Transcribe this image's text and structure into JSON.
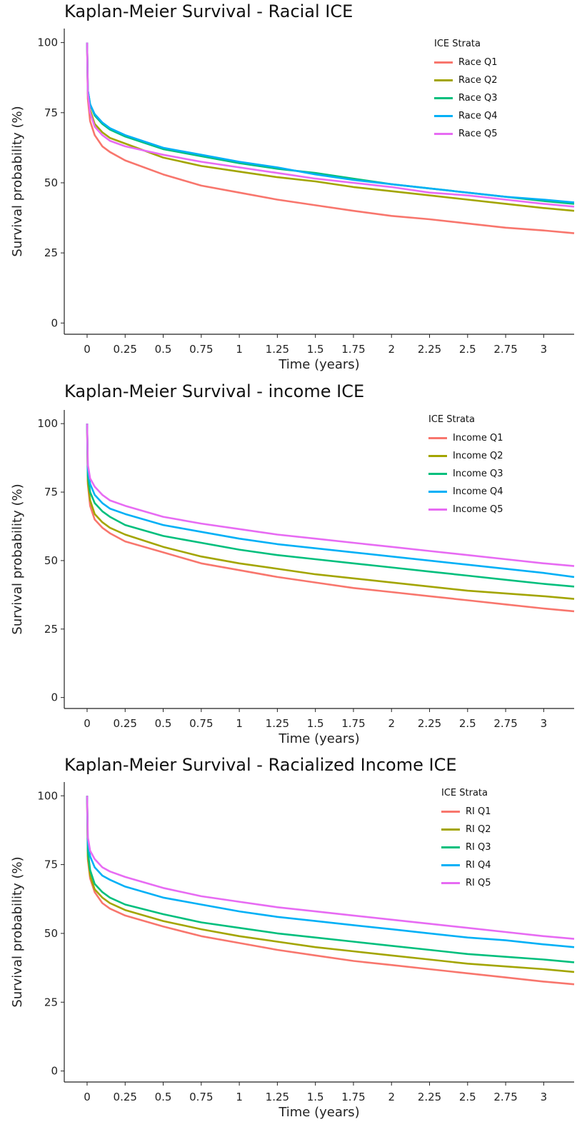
{
  "chart_data": [
    {
      "type": "line",
      "title": "Kaplan-Meier Survival - Racial ICE",
      "xlabel": "Time (years)",
      "ylabel": "Survival probability (%)",
      "xlim": [
        -0.15,
        3.2
      ],
      "ylim": [
        -4,
        105
      ],
      "xticks": [
        "0",
        "0.25",
        "0.5",
        "0.75",
        "1",
        "1.25",
        "1.5",
        "1.75",
        "2",
        "2.25",
        "2.5",
        "2.75",
        "3"
      ],
      "yticks": [
        "0",
        "25",
        "50",
        "75",
        "100"
      ],
      "legend_title": "ICE Strata",
      "legend_position": "top-right",
      "grid": false,
      "x": [
        0,
        0.005,
        0.02,
        0.05,
        0.1,
        0.15,
        0.25,
        0.5,
        0.75,
        1,
        1.25,
        1.5,
        1.75,
        2,
        2.25,
        2.5,
        2.75,
        3,
        3.2
      ],
      "series": [
        {
          "name": "Race Q1",
          "color": "#F8766D",
          "values": [
            100,
            80,
            72,
            67,
            63,
            61,
            58,
            53,
            49,
            46.5,
            44,
            42,
            40,
            38.2,
            37,
            35.5,
            34,
            33,
            32
          ]
        },
        {
          "name": "Race Q2",
          "color": "#A3A500",
          "values": [
            100,
            82,
            76,
            71,
            68,
            66,
            64,
            59,
            56,
            54,
            52,
            50.5,
            48.5,
            47,
            45.5,
            44,
            42.5,
            41,
            40
          ]
        },
        {
          "name": "Race Q3",
          "color": "#00BF7D",
          "values": [
            100,
            83,
            78,
            74,
            71,
            69,
            66.5,
            62,
            59.5,
            57,
            55,
            53.5,
            51.5,
            49.5,
            48,
            46.5,
            45,
            43.5,
            42.5
          ]
        },
        {
          "name": "Race Q4",
          "color": "#00B0F6",
          "values": [
            100,
            83,
            78,
            74.5,
            71.5,
            69.5,
            67,
            62.5,
            60,
            57.5,
            55.5,
            53,
            51,
            49.5,
            48,
            46.5,
            45,
            44,
            43
          ]
        },
        {
          "name": "Race Q5",
          "color": "#E76BF3",
          "values": [
            100,
            82,
            75,
            70,
            67,
            65,
            63,
            60,
            57.5,
            55.5,
            53.5,
            51.5,
            50,
            48.5,
            46.5,
            45.5,
            44,
            42.5,
            41.5
          ]
        }
      ]
    },
    {
      "type": "line",
      "title": "Kaplan-Meier Survival - income ICE",
      "xlabel": "Time (years)",
      "ylabel": "Survival probability (%)",
      "xlim": [
        -0.15,
        3.2
      ],
      "ylim": [
        -4,
        105
      ],
      "xticks": [
        "0",
        "0.25",
        "0.5",
        "0.75",
        "1",
        "1.25",
        "1.5",
        "1.75",
        "2",
        "2.25",
        "2.5",
        "2.75",
        "3"
      ],
      "yticks": [
        "0",
        "25",
        "50",
        "75",
        "100"
      ],
      "legend_title": "ICE Strata",
      "legend_position": "top-right",
      "grid": false,
      "x": [
        0,
        0.005,
        0.02,
        0.05,
        0.1,
        0.15,
        0.25,
        0.5,
        0.75,
        1,
        1.25,
        1.5,
        1.75,
        2,
        2.25,
        2.5,
        2.75,
        3,
        3.2
      ],
      "series": [
        {
          "name": "Income Q1",
          "color": "#F8766D",
          "values": [
            100,
            78,
            70,
            65,
            62,
            60,
            57,
            53,
            49,
            46.5,
            44,
            42,
            40,
            38.5,
            37,
            35.5,
            34,
            32.5,
            31.5
          ]
        },
        {
          "name": "Income Q2",
          "color": "#A3A500",
          "values": [
            100,
            79,
            72,
            67,
            64,
            62,
            59.5,
            55,
            51.5,
            49,
            47,
            45,
            43.5,
            42,
            40.5,
            39,
            38,
            37,
            36
          ]
        },
        {
          "name": "Income Q3",
          "color": "#00BF7D",
          "values": [
            100,
            81,
            75,
            71,
            68,
            66,
            63,
            59,
            56.5,
            54,
            52,
            50.5,
            49,
            47.5,
            46,
            44.5,
            43,
            41.5,
            40.5
          ]
        },
        {
          "name": "Income Q4",
          "color": "#00B0F6",
          "values": [
            100,
            83,
            78,
            74,
            71,
            69,
            67,
            63,
            60.5,
            58,
            56,
            54.5,
            53,
            51.5,
            50,
            48.5,
            47,
            45.5,
            44
          ]
        },
        {
          "name": "Income Q5",
          "color": "#E76BF3",
          "values": [
            100,
            85,
            80,
            77,
            74,
            72,
            70,
            66,
            63.5,
            61.5,
            59.5,
            58,
            56.5,
            55,
            53.5,
            52,
            50.5,
            49,
            48
          ]
        }
      ]
    },
    {
      "type": "line",
      "title": "Kaplan-Meier Survival - Racialized Income ICE",
      "xlabel": "Time (years)",
      "ylabel": "Survival probability (%)",
      "xlim": [
        -0.15,
        3.2
      ],
      "ylim": [
        -4,
        105
      ],
      "xticks": [
        "0",
        "0.25",
        "0.5",
        "0.75",
        "1",
        "1.25",
        "1.5",
        "1.75",
        "2",
        "2.25",
        "2.5",
        "2.75",
        "3"
      ],
      "yticks": [
        "0",
        "25",
        "50",
        "75",
        "100"
      ],
      "legend_title": "ICE Strata",
      "legend_position": "top-right",
      "grid": false,
      "x": [
        0,
        0.005,
        0.02,
        0.05,
        0.1,
        0.15,
        0.25,
        0.5,
        0.75,
        1,
        1.25,
        1.5,
        1.75,
        2,
        2.25,
        2.5,
        2.75,
        3,
        3.2
      ],
      "series": [
        {
          "name": "RI Q1",
          "color": "#F8766D",
          "values": [
            100,
            77,
            70,
            65,
            61,
            59,
            56.5,
            52.5,
            49,
            46.5,
            44,
            42,
            40,
            38.5,
            37,
            35.5,
            34,
            32.5,
            31.5
          ]
        },
        {
          "name": "RI Q2",
          "color": "#A3A500",
          "values": [
            100,
            78,
            71,
            66,
            63,
            61,
            58.5,
            54.5,
            51.5,
            49,
            47,
            45,
            43.5,
            42,
            40.5,
            39,
            38,
            37,
            36
          ]
        },
        {
          "name": "RI Q3",
          "color": "#00BF7D",
          "values": [
            100,
            80,
            73,
            68,
            65,
            63,
            60.5,
            57,
            54,
            52,
            50,
            48.5,
            47,
            45.5,
            44,
            42.5,
            41.5,
            40.5,
            39.5
          ]
        },
        {
          "name": "RI Q4",
          "color": "#00B0F6",
          "values": [
            100,
            83,
            78,
            74,
            71,
            69.5,
            67,
            63,
            60.5,
            58,
            56,
            54.5,
            53,
            51.5,
            50,
            48.5,
            47.5,
            46,
            45
          ]
        },
        {
          "name": "RI Q5",
          "color": "#E76BF3",
          "values": [
            100,
            85,
            80,
            77,
            74,
            72.5,
            70.5,
            66.5,
            63.5,
            61.5,
            59.5,
            58,
            56.5,
            55,
            53.5,
            52,
            50.5,
            49,
            48
          ]
        }
      ]
    }
  ]
}
